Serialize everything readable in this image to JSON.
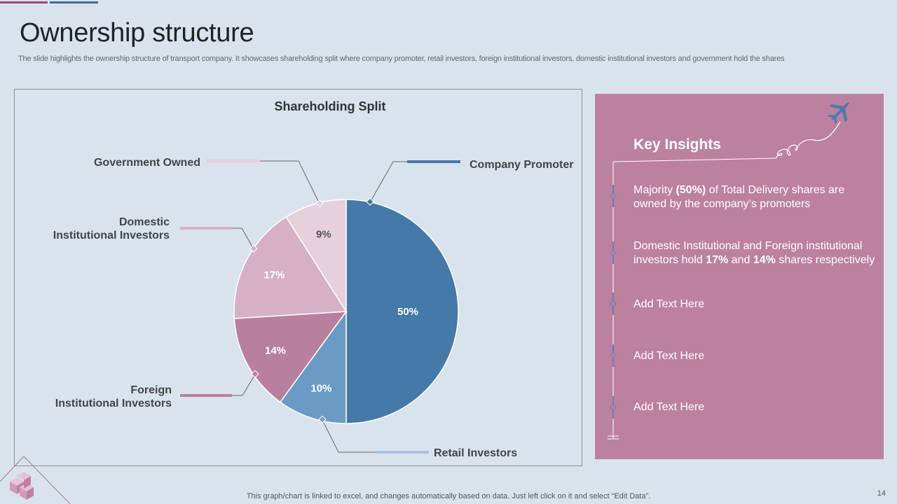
{
  "page": {
    "title": "Ownership structure",
    "subtitle": "The slide highlights the ownership structure of transport company. It showcases shareholding split where company promoter, retail investors, foreign institutional investors, domestic institutional investors and government hold the shares",
    "footer": "This graph/chart is linked to excel,  and changes automatically based on data. Just left click on it and select “Edit Data”.",
    "page_number": "14"
  },
  "chart_data": {
    "type": "pie",
    "title": "Shareholding Split",
    "slices": [
      {
        "name": "Company Promoter",
        "value": 50,
        "label": "50%",
        "color": "#4479a8"
      },
      {
        "name": "Retail Investors",
        "value": 10,
        "label": "10%",
        "color": "#6b9bc4"
      },
      {
        "name": "Foreign Institutional Investors",
        "value": 14,
        "label": "14%",
        "color": "#b97f9e"
      },
      {
        "name": "Domestic Institutional Investors",
        "value": 17,
        "label": "17%",
        "color": "#d6b1c5"
      },
      {
        "name": "Government Owned",
        "value": 9,
        "label": "9%",
        "color": "#e6d0dc"
      }
    ],
    "callout_labels": {
      "company_promoter": "Company Promoter",
      "retail": "Retail Investors",
      "foreign_line1": "Foreign",
      "foreign_line2": "Institutional Investors",
      "domestic_line1": "Domestic",
      "domestic_line2": "Institutional Investors",
      "government": "Government Owned"
    }
  },
  "insights": {
    "title": "Key Insights",
    "items": [
      {
        "pre": "Majority ",
        "b1": "(50%)",
        "mid": " of Total Delivery shares are owned by the company’s promoters",
        "b2": "",
        "post": ""
      },
      {
        "pre": "Domestic Institutional  and Foreign institutional investors hold ",
        "b1": "17%",
        "mid": " and ",
        "b2": "14%",
        "post": " shares respectively"
      },
      {
        "pre": "Add Text Here",
        "b1": "",
        "mid": "",
        "b2": "",
        "post": ""
      },
      {
        "pre": "Add Text Here",
        "b1": "",
        "mid": "",
        "b2": "",
        "post": ""
      },
      {
        "pre": "Add Text Here",
        "b1": "",
        "mid": "",
        "b2": "",
        "post": ""
      }
    ],
    "icons": {
      "plane": "airplane-icon"
    }
  },
  "colors": {
    "background": "#d9e3ed",
    "insights_panel": "#bc819f",
    "accent_blue": "#3d6b9f",
    "accent_pink": "#a3457a"
  }
}
